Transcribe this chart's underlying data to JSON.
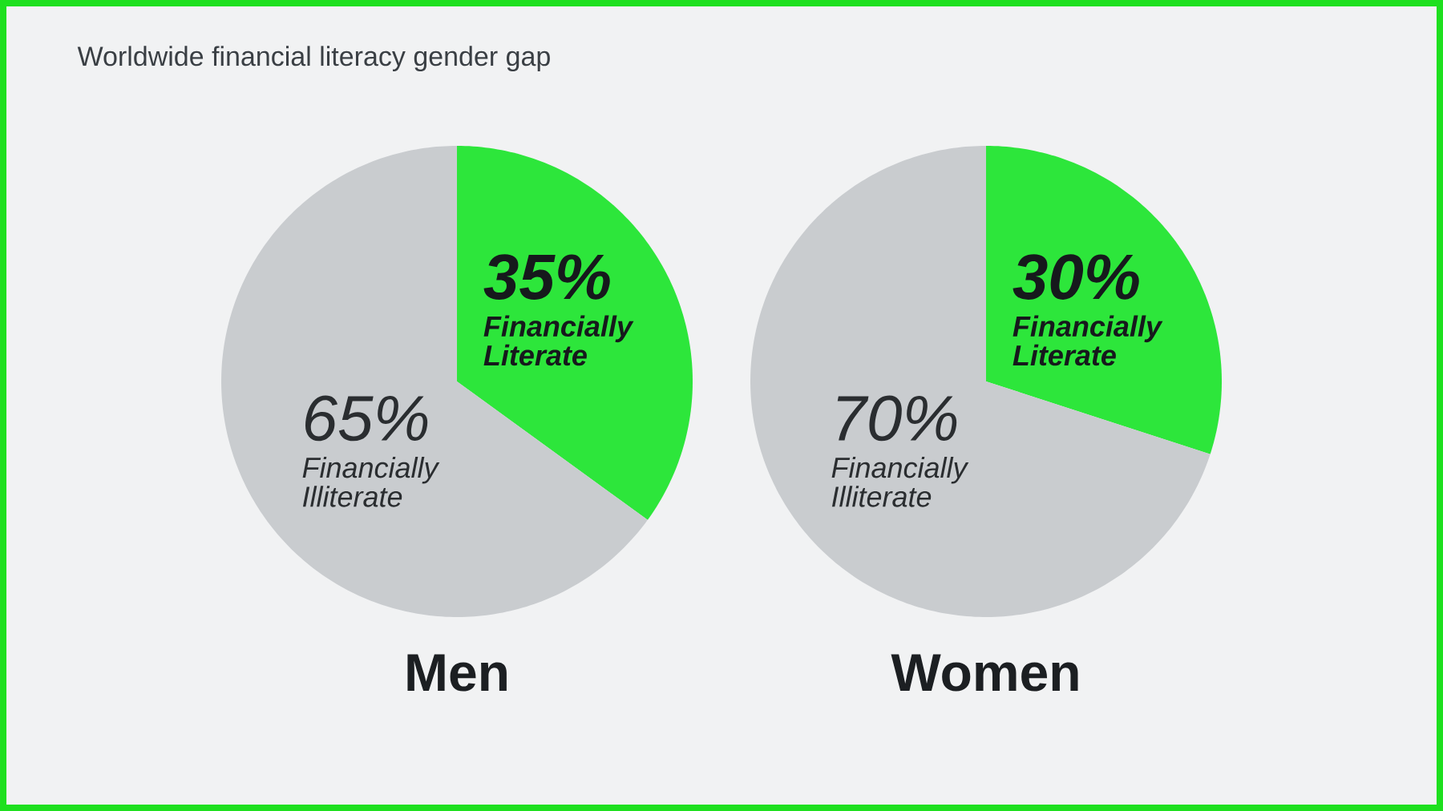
{
  "chart_data": [
    {
      "type": "pie",
      "annotations": [
        "Worldwide financial literacy gender gap"
      ],
      "title": "Men",
      "categories": [
        "Financially Literate",
        "Financially Illiterate"
      ],
      "values": [
        35,
        65
      ],
      "colors": [
        "#2de63b",
        "#c9cccf"
      ],
      "value_labels": [
        "35%",
        "65%"
      ]
    },
    {
      "type": "pie",
      "title": "Women",
      "categories": [
        "Financially Literate",
        "Financially Illiterate"
      ],
      "values": [
        30,
        70
      ],
      "colors": [
        "#2de63b",
        "#c9cccf"
      ],
      "value_labels": [
        "30%",
        "70%"
      ]
    }
  ]
}
